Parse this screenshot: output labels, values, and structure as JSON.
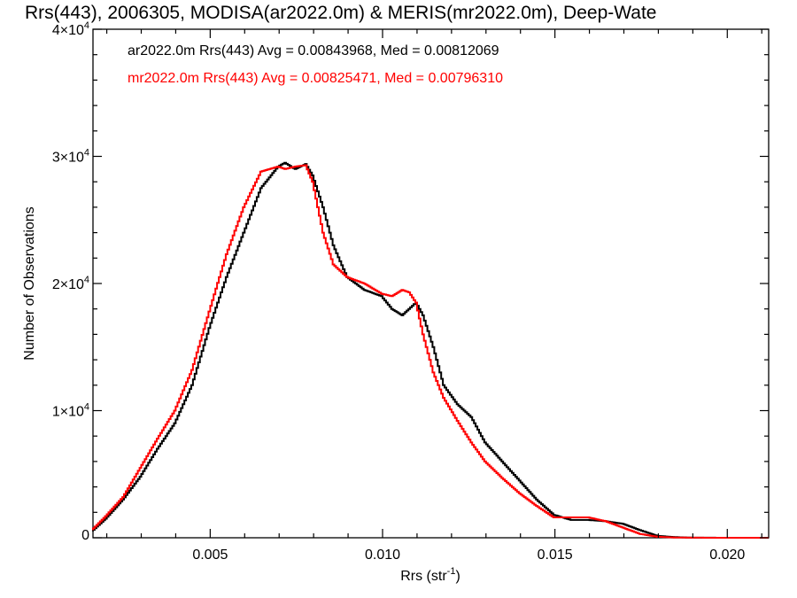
{
  "chart_data": {
    "type": "line",
    "title": "Rrs(443), 2006305, MODISA(ar2022.0m) & MERIS(mr2022.0m), Deep-Wate",
    "xlabel": "Rrs (str",
    "xlabel_sup": "-1",
    "xlabel_suffix": ")",
    "ylabel": "Number of Observations",
    "xlim": [
      0.0016,
      0.0212
    ],
    "ylim": [
      0,
      40000
    ],
    "grid": false,
    "x_ticks": [
      {
        "value": 0.005,
        "label": "0.005"
      },
      {
        "value": 0.01,
        "label": "0.010"
      },
      {
        "value": 0.015,
        "label": "0.015"
      },
      {
        "value": 0.02,
        "label": "0.020"
      }
    ],
    "y_ticks": [
      {
        "value": 0,
        "label": "0",
        "exp": ""
      },
      {
        "value": 10000,
        "label": "1×10",
        "exp": "4"
      },
      {
        "value": 20000,
        "label": "2×10",
        "exp": "4"
      },
      {
        "value": 30000,
        "label": "3×10",
        "exp": "4"
      },
      {
        "value": 40000,
        "label": "4×10",
        "exp": "4"
      }
    ],
    "annotations": [
      {
        "text": "ar2022.0m Rrs(443) Avg = 0.00843968, Med = 0.00812069",
        "color": "#000000"
      },
      {
        "text": "mr2022.0m Rrs(443) Avg = 0.00825471, Med = 0.00796310",
        "color": "#ff0000"
      }
    ],
    "series": [
      {
        "color": "#000000",
        "x": [
          0.0016,
          0.002,
          0.0025,
          0.003,
          0.0035,
          0.004,
          0.0045,
          0.005,
          0.0055,
          0.006,
          0.0065,
          0.007,
          0.0072,
          0.0075,
          0.0078,
          0.008,
          0.0083,
          0.0086,
          0.009,
          0.0095,
          0.01,
          0.0103,
          0.0106,
          0.0108,
          0.011,
          0.0112,
          0.0115,
          0.0118,
          0.0122,
          0.0126,
          0.013,
          0.0135,
          0.014,
          0.0145,
          0.015,
          0.0155,
          0.016,
          0.0165,
          0.017,
          0.0175,
          0.018,
          0.0185,
          0.019,
          0.02,
          0.0212
        ],
        "values": [
          500,
          1500,
          3000,
          4800,
          7000,
          9000,
          12000,
          16500,
          20500,
          24000,
          27500,
          29200,
          29500,
          29000,
          29400,
          28500,
          26000,
          23000,
          20500,
          19500,
          19000,
          18000,
          17500,
          18000,
          18500,
          17500,
          15000,
          12000,
          10500,
          9500,
          7500,
          6000,
          4500,
          3000,
          1800,
          1400,
          1400,
          1300,
          1100,
          600,
          150,
          50,
          10,
          0,
          0
        ]
      },
      {
        "color": "#ff0000",
        "x": [
          0.0016,
          0.002,
          0.0025,
          0.003,
          0.0035,
          0.004,
          0.0045,
          0.005,
          0.0055,
          0.006,
          0.0065,
          0.007,
          0.0072,
          0.0075,
          0.0078,
          0.008,
          0.0083,
          0.0086,
          0.009,
          0.0095,
          0.01,
          0.0103,
          0.0106,
          0.0108,
          0.011,
          0.0112,
          0.0115,
          0.0118,
          0.0122,
          0.0126,
          0.013,
          0.0135,
          0.014,
          0.0145,
          0.015,
          0.0155,
          0.016,
          0.0165,
          0.017,
          0.0175,
          0.018,
          0.0185,
          0.019,
          0.02,
          0.0212
        ],
        "values": [
          600,
          1700,
          3200,
          5500,
          7800,
          10000,
          13200,
          17800,
          22300,
          26000,
          28800,
          29200,
          29000,
          29200,
          29300,
          28000,
          24000,
          21500,
          20500,
          20000,
          19200,
          19000,
          19500,
          19300,
          18500,
          16000,
          13000,
          11000,
          9200,
          7500,
          6000,
          4700,
          3500,
          2500,
          1600,
          1600,
          1600,
          1300,
          800,
          300,
          80,
          20,
          5,
          0,
          0
        ]
      }
    ]
  }
}
